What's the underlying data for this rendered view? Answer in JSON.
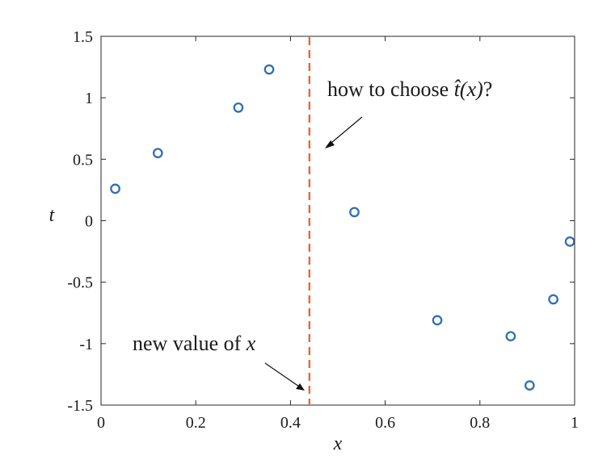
{
  "chart_data": {
    "type": "scatter",
    "xlabel": "x",
    "ylabel": "t",
    "xlim": [
      0,
      1
    ],
    "ylim": [
      -1.5,
      1.5
    ],
    "grid": false,
    "x_ticks": [
      "0",
      "0.2",
      "0.4",
      "0.6",
      "0.8",
      "1"
    ],
    "y_ticks": [
      "1.5",
      "1",
      "0.5",
      "0",
      "-0.5",
      "-1",
      "-1.5"
    ],
    "marker": "open-circle",
    "series": [
      {
        "color": "#2f6fb3",
        "points": [
          {
            "x": 0.03,
            "y": 0.26
          },
          {
            "x": 0.12,
            "y": 0.55
          },
          {
            "x": 0.29,
            "y": 0.92
          },
          {
            "x": 0.355,
            "y": 1.23
          },
          {
            "x": 0.535,
            "y": 0.07
          },
          {
            "x": 0.71,
            "y": -0.81
          },
          {
            "x": 0.865,
            "y": -0.94
          },
          {
            "x": 0.905,
            "y": -1.34
          },
          {
            "x": 0.955,
            "y": -0.64
          },
          {
            "x": 0.99,
            "y": -0.17
          }
        ]
      }
    ],
    "vertical_line": {
      "x": 0.44,
      "color": "#e46a3b",
      "style": "dashed"
    },
    "annotations": [
      {
        "id": "how-to-choose",
        "text_prefix": "how to choose ",
        "math_text": "t̂(x)",
        "text_suffix": "?"
      },
      {
        "id": "new-value",
        "text_prefix": "new value of ",
        "math_text": "x",
        "text_suffix": ""
      }
    ]
  }
}
